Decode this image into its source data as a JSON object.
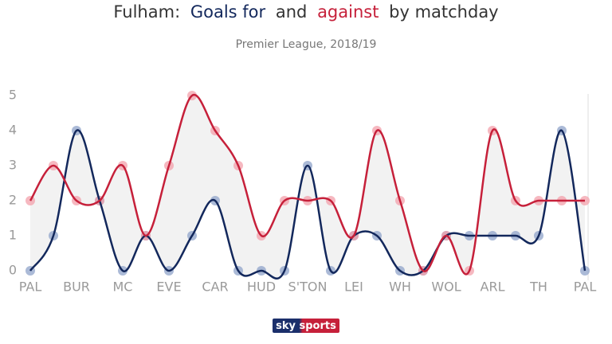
{
  "chart_data": {
    "type": "line",
    "title_parts": [
      "Fulham:",
      "Goals for",
      "and",
      "against",
      "by matchday"
    ],
    "subtitle": "Premier League, 2018/19",
    "logo": "sky sports",
    "categories": [
      "PAL",
      null,
      "BUR",
      null,
      "MC",
      null,
      "EVE",
      null,
      "CAR",
      null,
      "HUD",
      null,
      "S'TON",
      null,
      "LEI",
      null,
      "WH",
      null,
      "WOL",
      null,
      "ARL",
      null,
      "TH",
      null,
      "PAL"
    ],
    "series": [
      {
        "name": "Goals for",
        "color": "#13285c",
        "dot_color": "#8fa3c9",
        "values": [
          0,
          1,
          4,
          2,
          0,
          1,
          0,
          1,
          2,
          0,
          0,
          0,
          3,
          0,
          1,
          1,
          0,
          0,
          1,
          1,
          1,
          1,
          1,
          4,
          0
        ]
      },
      {
        "name": "against",
        "color": "#c6203a",
        "dot_color": "#f3a0ab",
        "values": [
          2,
          3,
          2,
          2,
          3,
          1,
          3,
          5,
          4,
          3,
          1,
          2,
          2,
          2,
          1,
          4,
          2,
          0,
          1,
          0,
          4,
          2,
          2,
          2,
          2
        ]
      }
    ],
    "ylim": [
      0,
      5
    ],
    "yticks": [
      0,
      1,
      2,
      3,
      4,
      5
    ],
    "fill_between": "#f2f2f2"
  }
}
